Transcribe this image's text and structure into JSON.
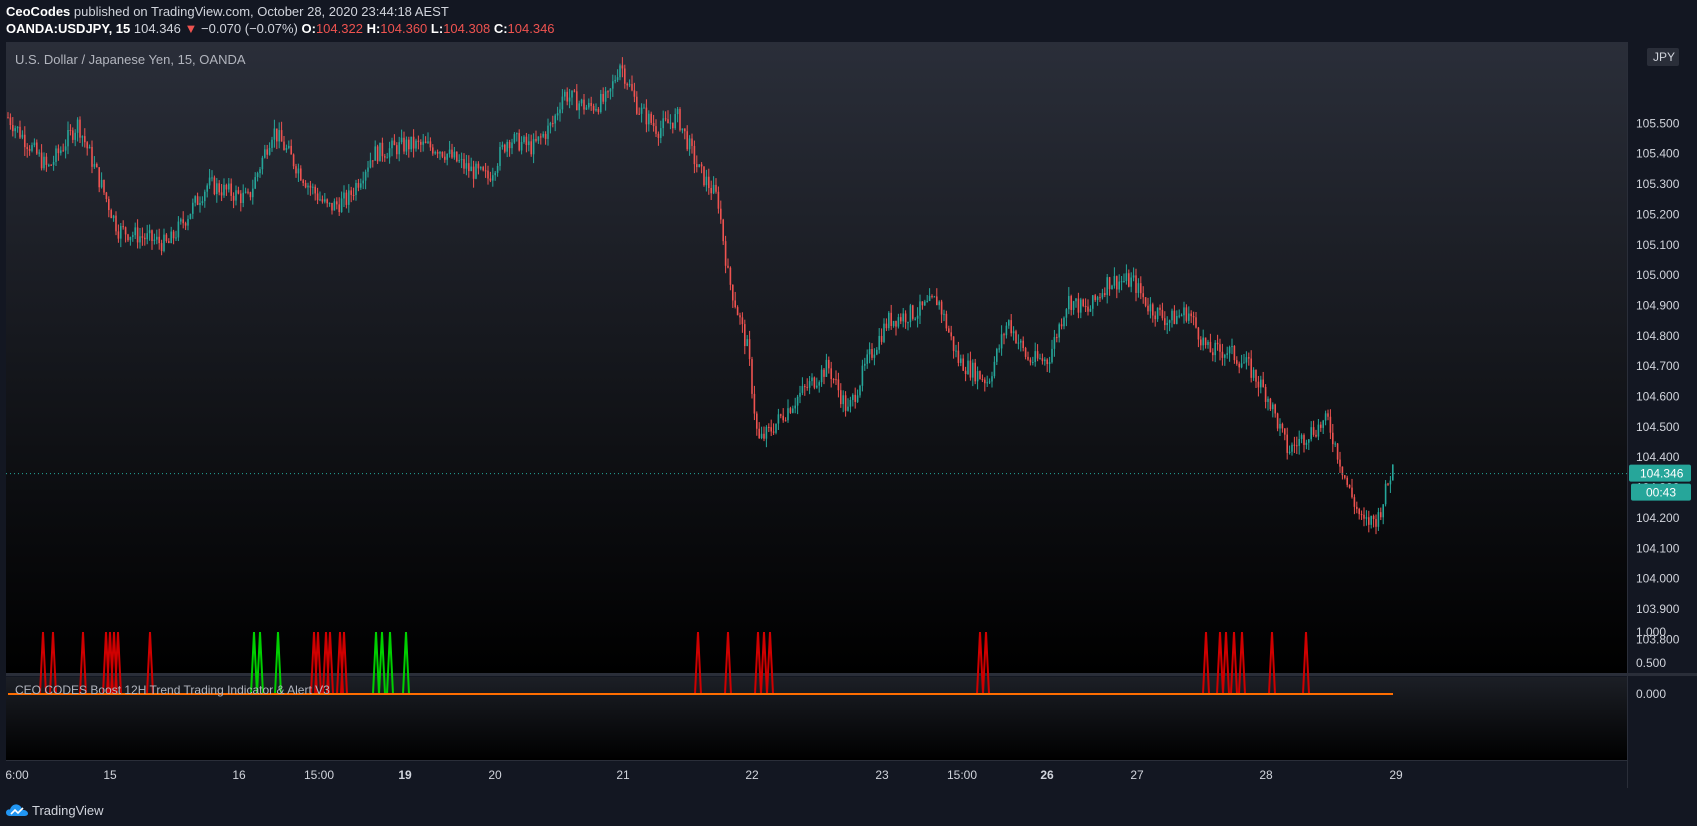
{
  "header": {
    "author": "CeoCodes",
    "published_text": "published on TradingView.com, October 28, 2020 23:44:18 AEST",
    "symbol": "OANDA:USDJPY, 15",
    "last": "104.346",
    "change": "−0.070 (−0.07%)",
    "o_label": "O:",
    "o_value": "104.322",
    "h_label": "H:",
    "h_value": "104.360",
    "l_label": "L:",
    "l_value": "104.308",
    "c_label": "C:",
    "c_value": "104.346"
  },
  "pane_title": "U.S. Dollar / Japanese Yen, 15, OANDA",
  "currency": "JPY",
  "price_label": "104.346",
  "countdown": "00:43",
  "indicator_title": "CEO CODES Boost 12H Trend Trading Indicator & Alert V3",
  "brand": "TradingView",
  "colors": {
    "up": "#26a69a",
    "down": "#ef5350",
    "bg_top": "#2a2e39",
    "bg_bottom": "#000000",
    "signal_red": "#d00000",
    "signal_green": "#00d000",
    "baseline": "#ff6d00",
    "last_price": "#26a69a"
  },
  "chart_data": [
    {
      "type": "candlestick",
      "title": "U.S. Dollar / Japanese Yen, 15, OANDA",
      "ylabel": "JPY",
      "ylim": [
        103.76,
        105.68
      ],
      "y_ticks": [
        "105.500",
        "105.400",
        "105.300",
        "105.200",
        "105.100",
        "105.000",
        "104.900",
        "104.800",
        "104.700",
        "104.600",
        "104.500",
        "104.400",
        "104.300",
        "104.200",
        "104.100",
        "104.000",
        "103.900",
        "103.800"
      ],
      "x_ticks": [
        "6:00",
        "15",
        "16",
        "15:00",
        "19",
        "20",
        "21",
        "22",
        "23",
        "15:00",
        "26",
        "27",
        "28",
        "29"
      ],
      "last_price": 104.346,
      "path_x": [
        0,
        40,
        70,
        110,
        160,
        200,
        240,
        265,
        300,
        320,
        340,
        365,
        400,
        430,
        460,
        480,
        500,
        525,
        545,
        555,
        580,
        600,
        612,
        630,
        650,
        670,
        690,
        710,
        720,
        740,
        750,
        760,
        790,
        820,
        840,
        860,
        880,
        910,
        930,
        950,
        980,
        1000,
        1020,
        1040,
        1060,
        1080,
        1100,
        1125,
        1140,
        1160,
        1180,
        1200,
        1220,
        1240,
        1260,
        1280,
        1300,
        1320,
        1340,
        1355,
        1370,
        1385
      ],
      "path_y": [
        105.52,
        105.35,
        105.5,
        105.15,
        105.1,
        105.3,
        105.25,
        105.48,
        105.3,
        105.22,
        105.25,
        105.4,
        105.43,
        105.42,
        105.35,
        105.32,
        105.45,
        105.42,
        105.5,
        105.6,
        105.55,
        105.58,
        105.7,
        105.55,
        105.48,
        105.52,
        105.35,
        105.25,
        105.0,
        104.75,
        104.45,
        104.48,
        104.6,
        104.7,
        104.55,
        104.72,
        104.85,
        104.88,
        104.92,
        104.72,
        104.65,
        104.85,
        104.72,
        104.72,
        104.92,
        104.88,
        104.98,
        104.98,
        104.9,
        104.85,
        104.88,
        104.75,
        104.75,
        104.7,
        104.6,
        104.42,
        104.48,
        104.52,
        104.3,
        104.18,
        104.2,
        104.37
      ]
    },
    {
      "type": "bar",
      "title": "CEO CODES Boost 12H Trend Trading Indicator & Alert V3",
      "ylim": [
        0,
        1
      ],
      "y_ticks": [
        "1.000",
        "0.500",
        "0.000"
      ],
      "red_signal_x": [
        35,
        45,
        75,
        98,
        102,
        106,
        110,
        142,
        306,
        310,
        318,
        322,
        332,
        336,
        690,
        720,
        750,
        756,
        762,
        972,
        978,
        1198,
        1212,
        1218,
        1226,
        1234,
        1264,
        1298
      ],
      "green_signal_x": [
        246,
        252,
        270,
        368,
        374,
        382,
        398
      ]
    }
  ]
}
